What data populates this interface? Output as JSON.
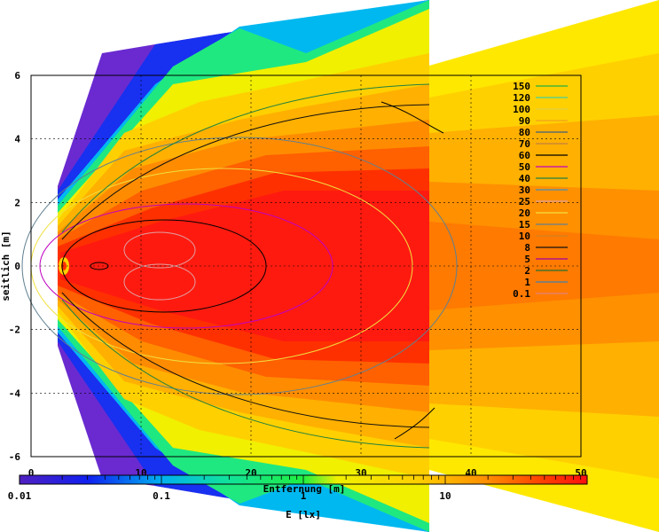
{
  "chart_data": {
    "type": "heatmap",
    "title": "",
    "xlabel": "Entfernung [m]",
    "ylabel": "seitlich [m]",
    "xlim": [
      0,
      50
    ],
    "ylim": [
      -6,
      6
    ],
    "x_ticks": [
      "0",
      "10",
      "20",
      "30",
      "40",
      "50"
    ],
    "y_ticks": [
      "6",
      "4",
      "2",
      "0",
      "-2",
      "-4",
      "-6"
    ],
    "grid": true,
    "legend_position": "top-right",
    "contour_levels": [
      {
        "label": "150",
        "color": "#20b040"
      },
      {
        "label": "120",
        "color": "#40d0a0"
      },
      {
        "label": "100",
        "color": "#e0d040"
      },
      {
        "label": "90",
        "color": "#f0a020"
      },
      {
        "label": "80",
        "color": "#406080"
      },
      {
        "label": "70",
        "color": "#c08040"
      },
      {
        "label": "60",
        "color": "#000000"
      },
      {
        "label": "50",
        "color": "#c000c0"
      },
      {
        "label": "40",
        "color": "#208040"
      },
      {
        "label": "30",
        "color": "#4090c0"
      },
      {
        "label": "25",
        "color": "#e0a0a0"
      },
      {
        "label": "20",
        "color": "#f0e040"
      },
      {
        "label": "15",
        "color": "#608090"
      },
      {
        "label": "10",
        "color": "#d08020"
      },
      {
        "label": "8",
        "color": "#101010"
      },
      {
        "label": "5",
        "color": "#a000a0"
      },
      {
        "label": "2",
        "color": "#207030"
      },
      {
        "label": "1",
        "color": "#4080b0"
      },
      {
        "label": "0.1",
        "color": "#e08080"
      }
    ],
    "colorbar": {
      "label": "E [lx]",
      "scale": "log",
      "range": [
        0.01,
        100
      ],
      "tick_labels": [
        "0.01",
        "0.1",
        "1",
        "10"
      ]
    }
  }
}
